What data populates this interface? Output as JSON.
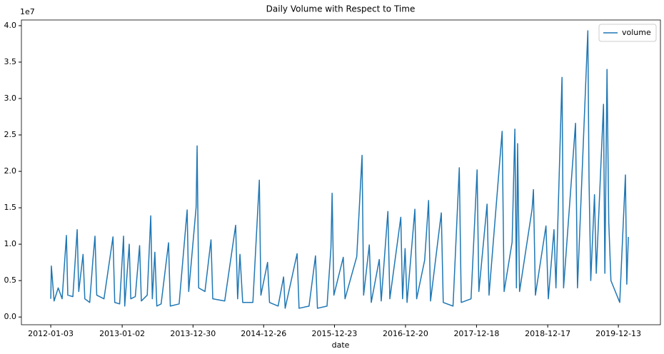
{
  "chart_data": {
    "type": "line",
    "title": "Daily Volume with Respect to Time",
    "xlabel": "date",
    "y_offset_label": "1e7",
    "legend": "upper right",
    "xlim": [
      "2011-08-06",
      "2020-07-15"
    ],
    "xticks": [
      "2012-01-03",
      "2013-01-02",
      "2013-12-30",
      "2014-12-26",
      "2015-12-23",
      "2016-12-20",
      "2017-12-18",
      "2018-12-17",
      "2019-12-13"
    ],
    "ylim": [
      -1060000,
      40780000
    ],
    "yticks": [
      {
        "value": 0,
        "label": "0.0"
      },
      {
        "value": 5000000,
        "label": "0.5"
      },
      {
        "value": 10000000,
        "label": "1.0"
      },
      {
        "value": 15000000,
        "label": "1.5"
      },
      {
        "value": 20000000,
        "label": "2.0"
      },
      {
        "value": 25000000,
        "label": "2.5"
      },
      {
        "value": 30000000,
        "label": "3.0"
      },
      {
        "value": 35000000,
        "label": "3.5"
      },
      {
        "value": 40000000,
        "label": "4.0"
      }
    ],
    "x": [
      "2012-01-03",
      "2012-01-06",
      "2012-01-20",
      "2012-02-10",
      "2012-03-01",
      "2012-03-23",
      "2012-03-30",
      "2012-04-25",
      "2012-05-17",
      "2012-05-25",
      "2012-06-16",
      "2012-06-25",
      "2012-07-20",
      "2012-08-05",
      "2012-08-16",
      "2012-08-25",
      "2012-10-01",
      "2012-11-16",
      "2012-11-25",
      "2012-12-20",
      "2013-01-09",
      "2013-01-15",
      "2013-02-07",
      "2013-02-15",
      "2013-03-10",
      "2013-04-01",
      "2013-04-10",
      "2013-05-10",
      "2013-05-28",
      "2013-06-05",
      "2013-06-18",
      "2013-06-28",
      "2013-07-20",
      "2013-08-27",
      "2013-09-05",
      "2013-10-20",
      "2013-11-30",
      "2013-12-08",
      "2014-01-15",
      "2014-01-20",
      "2014-01-28",
      "2014-03-01",
      "2014-04-01",
      "2014-04-10",
      "2014-06-10",
      "2014-08-05",
      "2014-08-15",
      "2014-08-27",
      "2014-09-10",
      "2014-11-01",
      "2014-12-04",
      "2014-12-12",
      "2015-01-15",
      "2015-01-25",
      "2015-03-10",
      "2015-04-07",
      "2015-04-15",
      "2015-06-15",
      "2015-06-25",
      "2015-08-15",
      "2015-09-17",
      "2015-09-27",
      "2015-11-15",
      "2015-12-05",
      "2015-12-11",
      "2015-12-20",
      "2016-02-06",
      "2016-02-15",
      "2016-04-15",
      "2016-05-12",
      "2016-05-20",
      "2016-06-18",
      "2016-06-28",
      "2016-08-08",
      "2016-08-18",
      "2016-09-21",
      "2016-10-01",
      "2016-11-26",
      "2016-12-05",
      "2016-12-18",
      "2016-12-28",
      "2017-02-06",
      "2017-02-15",
      "2017-03-28",
      "2017-04-17",
      "2017-04-27",
      "2017-06-21",
      "2017-07-01",
      "2017-08-20",
      "2017-09-21",
      "2017-10-01",
      "2017-11-20",
      "2017-12-21",
      "2017-12-30",
      "2018-02-10",
      "2018-02-20",
      "2018-04-28",
      "2018-05-08",
      "2018-06-18",
      "2018-07-02",
      "2018-07-10",
      "2018-07-16",
      "2018-07-26",
      "2018-09-28",
      "2018-10-05",
      "2018-10-15",
      "2018-12-08",
      "2018-12-20",
      "2019-01-18",
      "2019-01-28",
      "2019-02-28",
      "2019-03-08",
      "2019-05-08",
      "2019-05-18",
      "2019-07-10",
      "2019-07-16",
      "2019-07-25",
      "2019-08-13",
      "2019-08-22",
      "2019-09-28",
      "2019-10-05",
      "2019-10-16",
      "2019-10-25",
      "2019-11-05",
      "2019-12-20",
      "2020-01-18",
      "2020-01-25",
      "2020-02-02"
    ],
    "series": [
      {
        "name": "volume",
        "color": "#1f77b4",
        "values": [
          2500000,
          7000000,
          2200000,
          4000000,
          2500000,
          11200000,
          3000000,
          2800000,
          12000000,
          3500000,
          8600000,
          2500000,
          2000000,
          7700000,
          11100000,
          3000000,
          2500000,
          11000000,
          2000000,
          1800000,
          11100000,
          1500000,
          10000000,
          2500000,
          2800000,
          9800000,
          2200000,
          3000000,
          13900000,
          2500000,
          8900000,
          1500000,
          1800000,
          10200000,
          1500000,
          1800000,
          14700000,
          3500000,
          15100000,
          23500000,
          4000000,
          3500000,
          10600000,
          2500000,
          2200000,
          12600000,
          2500000,
          8600000,
          2000000,
          2000000,
          18800000,
          3000000,
          7500000,
          2000000,
          1500000,
          5500000,
          1200000,
          8700000,
          1200000,
          1500000,
          8400000,
          1200000,
          1500000,
          9500000,
          17000000,
          3000000,
          8200000,
          2500000,
          8300000,
          22200000,
          3000000,
          9900000,
          2000000,
          7900000,
          2200000,
          14500000,
          2500000,
          13700000,
          2500000,
          9400000,
          2000000,
          14800000,
          2500000,
          7800000,
          16000000,
          2200000,
          14300000,
          2000000,
          1500000,
          20500000,
          2000000,
          2500000,
          20200000,
          3500000,
          15500000,
          3000000,
          25500000,
          3500000,
          10300000,
          25800000,
          4000000,
          23800000,
          3500000,
          14800000,
          17500000,
          3000000,
          12500000,
          2500000,
          12000000,
          4000000,
          32900000,
          4000000,
          26600000,
          4000000,
          39300000,
          19000000,
          5000000,
          16800000,
          6000000,
          29200000,
          6000000,
          34000000,
          13000000,
          5000000,
          2000000,
          19500000,
          4500000,
          11000000
        ]
      }
    ]
  }
}
